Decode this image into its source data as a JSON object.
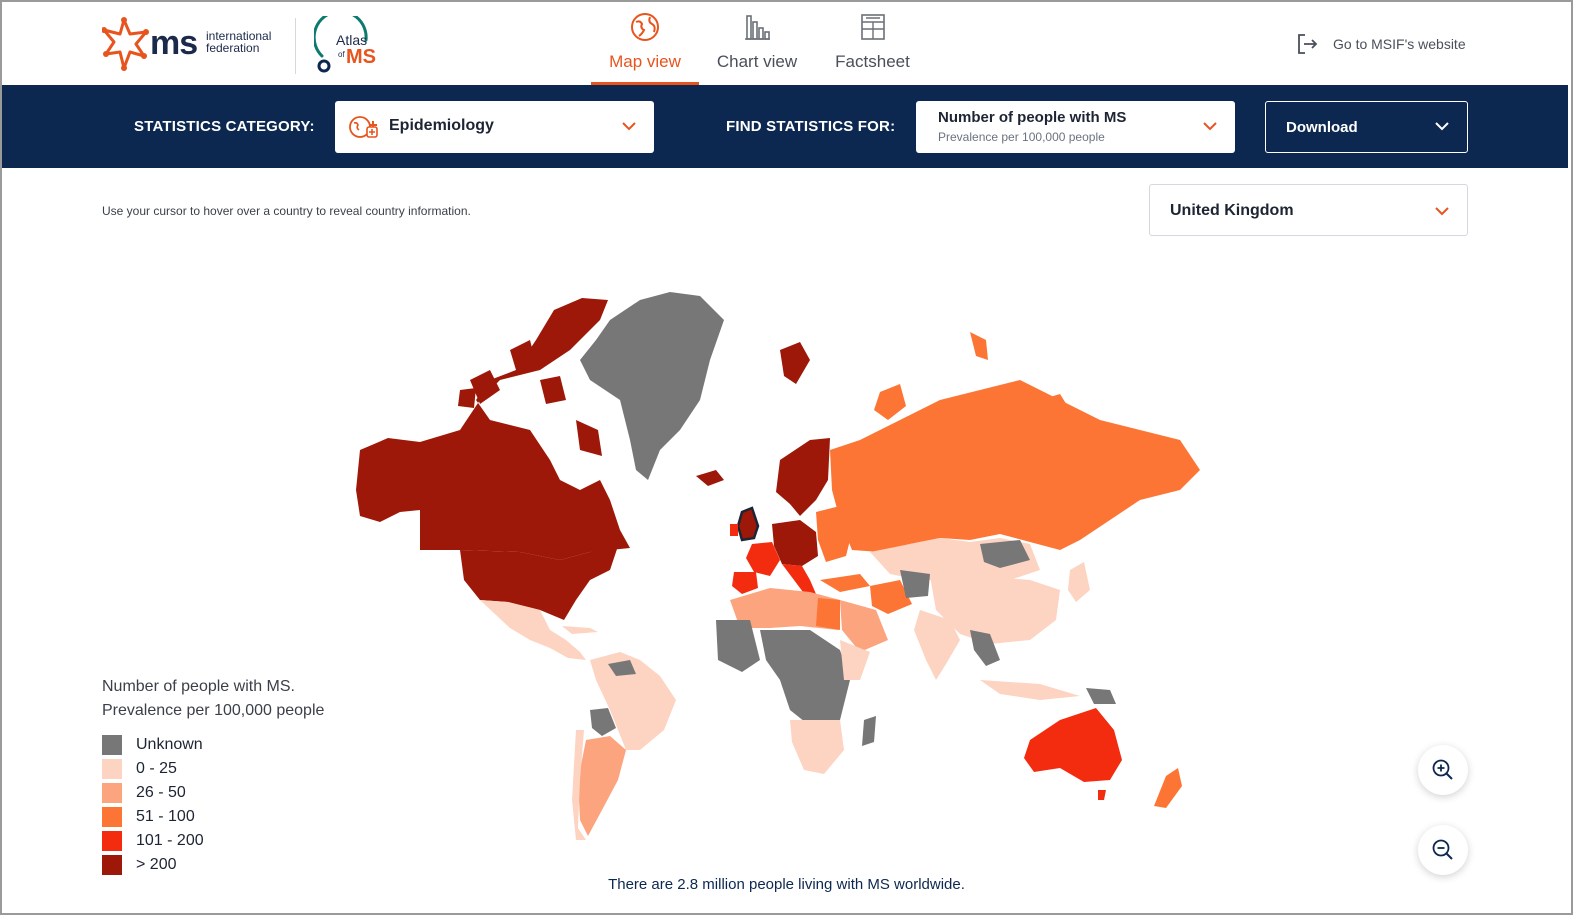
{
  "brand": {
    "ms_word": "ms",
    "ms_sub_line1": "international",
    "ms_sub_line2": "federation",
    "atlas_word": "Atlas",
    "atlas_of": "of",
    "atlas_ms": "MS",
    "accent_color": "#e8541e",
    "navy_color": "#0d2850"
  },
  "nav": {
    "tabs": [
      {
        "label": "Map view",
        "icon": "globe-icon",
        "active": true
      },
      {
        "label": "Chart view",
        "icon": "bar-chart-icon",
        "active": false
      },
      {
        "label": "Factsheet",
        "icon": "factsheet-icon",
        "active": false
      }
    ],
    "external_link": {
      "label": "Go to MSIF's website",
      "icon": "exit-arrow-icon"
    }
  },
  "filters": {
    "category_label": "STATISTICS CATEGORY:",
    "category_value": "Epidemiology",
    "category_icon": "epidemiology-icon",
    "find_label": "FIND STATISTICS FOR:",
    "stat_value": "Number of people with MS",
    "stat_sub": "Prevalence per 100,000 people",
    "download_label": "Download"
  },
  "map_panel": {
    "hint": "Use your cursor to hover over a country to reveal country information.",
    "country_selected": "United Kingdom",
    "footer_note": "There are 2.8 million people living with MS worldwide.",
    "zoom_in_icon": "zoom-in-icon",
    "zoom_out_icon": "zoom-out-icon"
  },
  "legend": {
    "title_line1": "Number of people with MS.",
    "title_line2": "Prevalence per 100,000 people",
    "items": [
      {
        "label": "Unknown",
        "color": "#777777"
      },
      {
        "label": "0 - 25",
        "color": "#fdd3c2"
      },
      {
        "label": "26 - 50",
        "color": "#fba47e"
      },
      {
        "label": "51 - 100",
        "color": "#fd7534"
      },
      {
        "label": "101 - 200",
        "color": "#f42c0f"
      },
      {
        "label": "> 200",
        "color": "#9d1808"
      }
    ]
  }
}
